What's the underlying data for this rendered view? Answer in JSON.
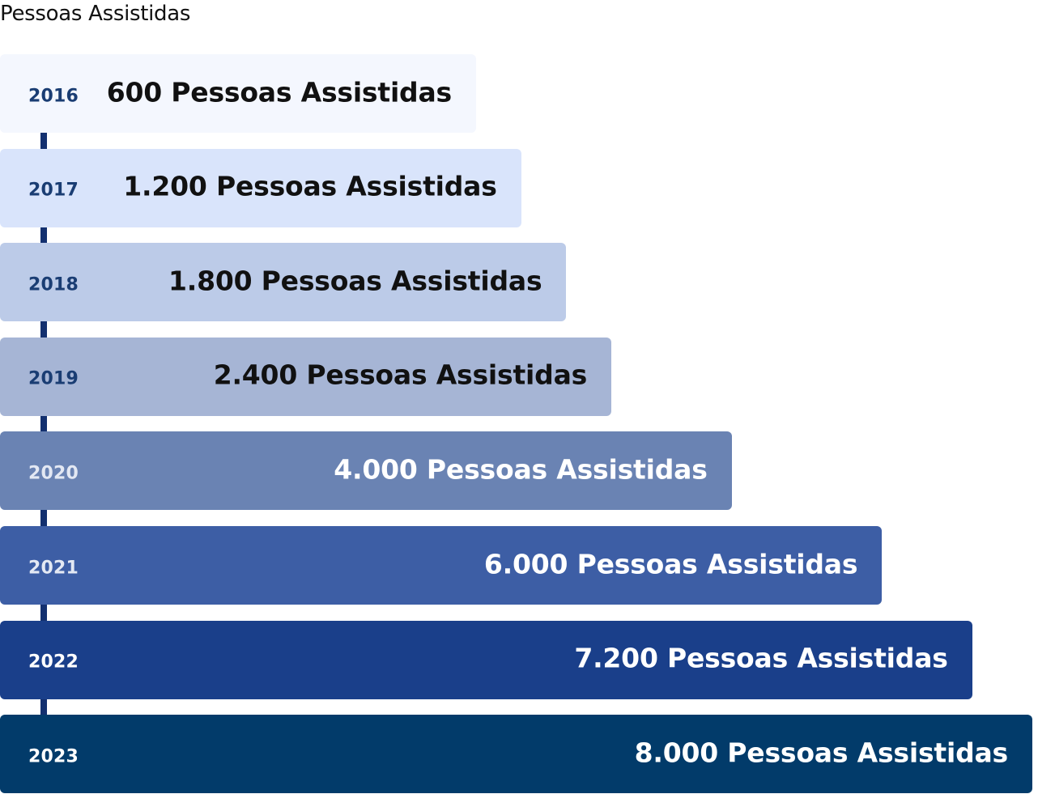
{
  "chart_data": {
    "type": "bar",
    "orientation": "horizontal",
    "title": "Pessoas Assistidas",
    "categories": [
      "2016",
      "2017",
      "2018",
      "2019",
      "2020",
      "2021",
      "2022",
      "2023"
    ],
    "values": [
      600,
      1200,
      1800,
      2400,
      4000,
      6000,
      7200,
      8000
    ],
    "value_labels": [
      "600 Pessoas Assistidas",
      "1.200 Pessoas Assistidas",
      "1.800 Pessoas Assistidas",
      "2.400 Pessoas Assistidas",
      "4.000 Pessoas Assistidas",
      "6.000 Pessoas Assistidas",
      "7.200 Pessoas Assistidas",
      "8.000 Pessoas Assistidas"
    ],
    "colors": [
      "#f4f7fe",
      "#d9e4fb",
      "#bccbe8",
      "#a6b5d5",
      "#6a83b3",
      "#3d5ea5",
      "#1a3f8a",
      "#023b6a"
    ],
    "year_colors": [
      "#1a3d73",
      "#1a3d73",
      "#1a3d73",
      "#1a3d73",
      "#e3e8f3",
      "#e3e8f3",
      "#ffffff",
      "#ffffff"
    ],
    "label_colors": [
      "#111111",
      "#111111",
      "#111111",
      "#111111",
      "#ffffff",
      "#ffffff",
      "#ffffff",
      "#ffffff"
    ],
    "axis_color": "#13306f",
    "legend": "none",
    "grid": false
  }
}
